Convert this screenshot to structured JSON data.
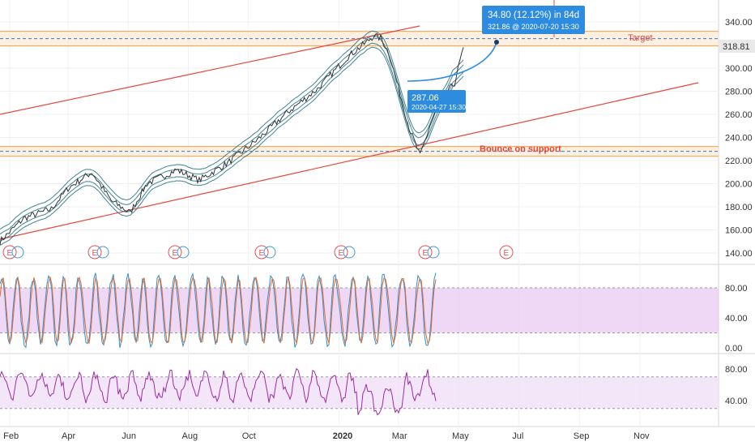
{
  "colors": {
    "price": "#333333",
    "ma": "#1f6f83",
    "channel": "#e8463b",
    "zone_fill": "#fbe3c8",
    "zone_edge": "#f4a04a",
    "dashed": "#3a78c3",
    "callout": "#2d8be0",
    "stoch_k": "#2f8fd8",
    "stoch_d": "#e26b2c",
    "stoch_band": "#e8c8f2",
    "rsi_line": "#9c2aa6",
    "rsi_band": "#f1e0f7",
    "earnings": "#e0555b",
    "dividend": "#3a9ad9",
    "last_price_bg": "#e9e9e9"
  },
  "chart_data": {
    "type": "line",
    "title": "",
    "x_labels": [
      "Feb",
      "Apr",
      "Jun",
      "Aug",
      "Oct",
      "2020",
      "Mar",
      "May",
      "Jul",
      "Sep",
      "Nov"
    ],
    "price_pane": {
      "y_ticks": [
        "340.00",
        "320.00",
        "300.00",
        "280.00",
        "260.00",
        "240.00",
        "220.00",
        "200.00",
        "180.00",
        "160.00",
        "140.00"
      ],
      "ylim": [
        131,
        352
      ],
      "last_price": "318.81",
      "x": [
        "2019-01-22",
        "2019-02-15",
        "2019-03-15",
        "2019-04-01",
        "2019-04-25",
        "2019-05-15",
        "2019-06-03",
        "2019-06-20",
        "2019-07-20",
        "2019-08-12",
        "2019-09-10",
        "2019-10-10",
        "2019-11-10",
        "2019-12-10",
        "2020-01-10",
        "2020-01-28",
        "2020-02-05",
        "2020-02-12",
        "2020-02-20",
        "2020-03-01",
        "2020-03-12",
        "2020-03-23",
        "2020-04-02",
        "2020-04-15",
        "2020-04-27",
        "2020-05-06"
      ],
      "close": [
        150,
        170,
        178,
        196,
        210,
        185,
        175,
        200,
        212,
        203,
        218,
        238,
        262,
        282,
        310,
        322,
        328,
        326,
        314,
        283,
        248,
        224,
        250,
        275,
        287,
        318
      ],
      "annotations": {
        "target_label": "Target",
        "target_level": 325.5,
        "support_label": "Bounce on support",
        "support_level": 228,
        "projection_text": "34.80 (12.12%) in 84d",
        "projection_sub": "321.86 @ 2020-07-20 15:30",
        "start_text": "287.06",
        "start_sub": "2020-04-27 15:30",
        "earnings_marker": "E"
      }
    },
    "stoch_pane": {
      "y_ticks": [
        "80.00",
        "40.00",
        "0.00"
      ],
      "ylim": [
        0,
        100
      ],
      "band": [
        20,
        80
      ]
    },
    "rsi_pane": {
      "y_ticks": [
        "80.00",
        "40.00"
      ],
      "ylim": [
        20,
        86
      ],
      "band": [
        30,
        70
      ]
    }
  }
}
